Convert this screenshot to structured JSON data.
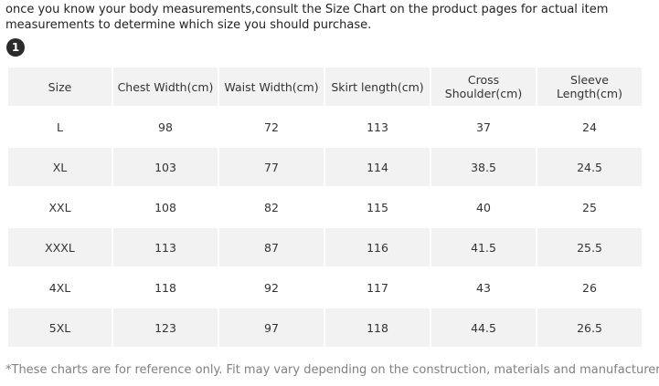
{
  "intro": {
    "line1": "once you know your body measurements,consult the Size Chart on the product pages for actual item",
    "line2": "measurements to determine which size you should purchase."
  },
  "step": {
    "number": "1"
  },
  "table": {
    "headers": {
      "size": "Size",
      "chest": "Chest Width(cm)",
      "waist": "Waist Width(cm)",
      "skirt": "Skirt length(cm)",
      "shoulder_line1": "Cross",
      "shoulder_line2": "Shoulder(cm)",
      "sleeve": "Sleeve Length(cm)"
    },
    "rows": [
      {
        "size": "L",
        "chest": "98",
        "waist": "72",
        "skirt": "113",
        "shoulder": "37",
        "sleeve": "24"
      },
      {
        "size": "XL",
        "chest": "103",
        "waist": "77",
        "skirt": "114",
        "shoulder": "38.5",
        "sleeve": "24.5"
      },
      {
        "size": "XXL",
        "chest": "108",
        "waist": "82",
        "skirt": "115",
        "shoulder": "40",
        "sleeve": "25"
      },
      {
        "size": "XXXL",
        "chest": "113",
        "waist": "87",
        "skirt": "116",
        "shoulder": "41.5",
        "sleeve": "25.5"
      },
      {
        "size": "4XL",
        "chest": "118",
        "waist": "92",
        "skirt": "117",
        "shoulder": "43",
        "sleeve": "26"
      },
      {
        "size": "5XL",
        "chest": "123",
        "waist": "97",
        "skirt": "118",
        "shoulder": "44.5",
        "sleeve": "26.5"
      }
    ]
  },
  "footnote": "*These charts are for reference only. Fit may vary depending on the construction, materials and manufacturer."
}
